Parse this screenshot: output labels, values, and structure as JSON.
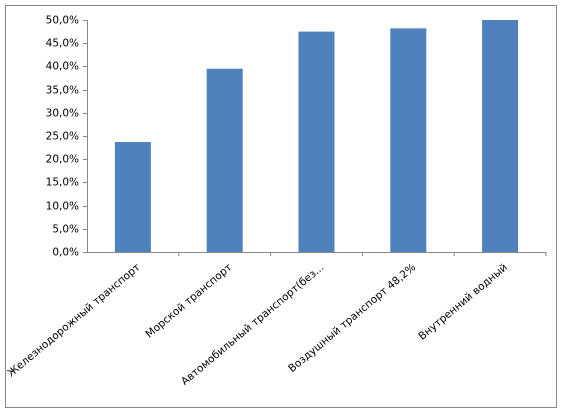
{
  "chart_data": {
    "type": "bar",
    "categories": [
      "Железнодорожный транспорт",
      "Морской транспорт",
      "Автомобильный транспорт(без...",
      "Воздушный транспорт 48,2%",
      "Внутренний водный"
    ],
    "values": [
      23.7,
      39.5,
      47.5,
      48.2,
      50.0
    ],
    "color": "#4f81bd",
    "ylim": [
      0,
      50
    ],
    "yticks": [
      {
        "value": 0,
        "label": "0,0%"
      },
      {
        "value": 5,
        "label": "5,0%"
      },
      {
        "value": 10,
        "label": "10,0%"
      },
      {
        "value": 15,
        "label": "15,0%"
      },
      {
        "value": 20,
        "label": "20,0%"
      },
      {
        "value": 25,
        "label": "25,0%"
      },
      {
        "value": 30,
        "label": "30,0%"
      },
      {
        "value": 35,
        "label": "35,0%"
      },
      {
        "value": 40,
        "label": "40,0%"
      },
      {
        "value": 45,
        "label": "45,0%"
      },
      {
        "value": 50,
        "label": "50,0%"
      }
    ],
    "grid": false
  }
}
